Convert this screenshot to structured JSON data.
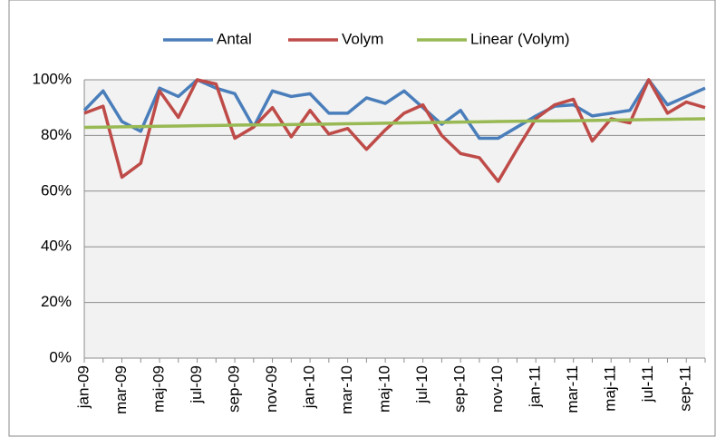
{
  "chart_data": {
    "type": "line",
    "categories": [
      "jan-09",
      null,
      "mar-09",
      null,
      "maj-09",
      null,
      "jul-09",
      null,
      "sep-09",
      null,
      "nov-09",
      null,
      "jan-10",
      null,
      "mar-10",
      null,
      "maj-10",
      null,
      "jul-10",
      null,
      "sep-10",
      null,
      "nov-10",
      null,
      "jan-11",
      null,
      "mar-11",
      null,
      "maj-11",
      null,
      "jul-11",
      null,
      "sep-11",
      null
    ],
    "series": [
      {
        "name": "Antal",
        "color": "#4a7ebb",
        "values": [
          89,
          96,
          85,
          81.5,
          97,
          94,
          100,
          97,
          95,
          83,
          96,
          94,
          95,
          88,
          88,
          93.5,
          91.5,
          96,
          90,
          84,
          89,
          79,
          79,
          83,
          87,
          90.5,
          91,
          87,
          88,
          89,
          100,
          91,
          94,
          97
        ]
      },
      {
        "name": "Volym",
        "color": "#be4b48",
        "values": [
          88,
          90.5,
          65,
          70,
          96,
          86.5,
          100,
          98.5,
          79,
          83,
          90,
          79.5,
          89,
          80.5,
          82.5,
          75,
          82,
          88,
          91,
          80,
          73.5,
          72,
          63.5,
          75,
          86,
          91,
          93,
          78,
          86,
          84.5,
          100,
          88,
          92,
          90
        ]
      },
      {
        "name": "Linear (Volym)",
        "color": "#98b954",
        "values": [
          82.9,
          83.0,
          83.1,
          83.2,
          83.3,
          83.4,
          83.5,
          83.6,
          83.7,
          83.8,
          83.8,
          83.9,
          84.0,
          84.1,
          84.2,
          84.3,
          84.4,
          84.5,
          84.6,
          84.7,
          84.8,
          84.9,
          85.0,
          85.1,
          85.2,
          85.2,
          85.3,
          85.4,
          85.5,
          85.6,
          85.7,
          85.8,
          85.9,
          86.0
        ]
      }
    ],
    "ylim": [
      0,
      100
    ],
    "yticks": [
      {
        "value": 0,
        "label": "0%"
      },
      {
        "value": 20,
        "label": "20%"
      },
      {
        "value": 40,
        "label": "40%"
      },
      {
        "value": 60,
        "label": "60%"
      },
      {
        "value": 80,
        "label": "80%"
      },
      {
        "value": 100,
        "label": "100%"
      }
    ],
    "grid": true,
    "legend": "top"
  }
}
